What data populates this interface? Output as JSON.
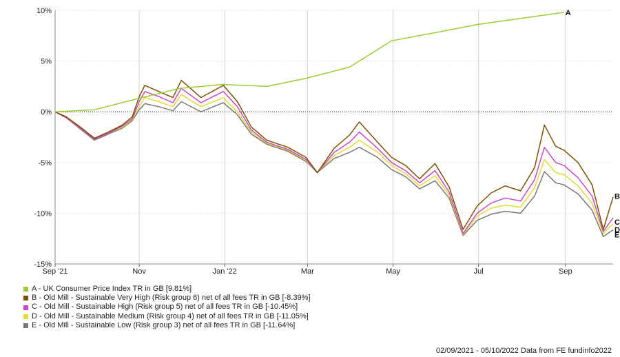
{
  "chart_data": {
    "type": "line",
    "title": "",
    "xlabel": "",
    "ylabel": "",
    "x_ticks": [
      {
        "label": "Sep '21",
        "date": "2021-09-02"
      },
      {
        "label": "Nov",
        "date": "2021-11-01"
      },
      {
        "label": "Jan '22",
        "date": "2022-01-01"
      },
      {
        "label": "Mar",
        "date": "2022-03-01"
      },
      {
        "label": "May",
        "date": "2022-05-01"
      },
      {
        "label": "Jul",
        "date": "2022-07-01"
      },
      {
        "label": "Sep",
        "date": "2022-09-01"
      }
    ],
    "x_range": [
      "2021-09-02",
      "2022-10-05"
    ],
    "ylim": [
      -15,
      10
    ],
    "y_ticks": [
      {
        "value": 10,
        "label": "10%"
      },
      {
        "value": 5,
        "label": "5%"
      },
      {
        "value": 0,
        "label": "0%"
      },
      {
        "value": -5,
        "label": "-5%"
      },
      {
        "value": -10,
        "label": "-10%"
      },
      {
        "value": -15,
        "label": "-15%"
      }
    ],
    "grid": true,
    "zero_line": "dotted",
    "legend_position": "bottom-left",
    "series": [
      {
        "id": "A",
        "name": "A - UK Consumer Price Index TR in GB [9.81%]",
        "color": "#99cc33",
        "points": [
          [
            "2021-09-02",
            0
          ],
          [
            "2021-09-30",
            0.2
          ],
          [
            "2021-10-31",
            1.3
          ],
          [
            "2021-11-30",
            2.3
          ],
          [
            "2021-12-31",
            2.7
          ],
          [
            "2022-01-31",
            2.5
          ],
          [
            "2022-02-28",
            3.3
          ],
          [
            "2022-03-31",
            4.4
          ],
          [
            "2022-04-30",
            7.0
          ],
          [
            "2022-05-31",
            7.8
          ],
          [
            "2022-06-30",
            8.6
          ],
          [
            "2022-07-31",
            9.2
          ],
          [
            "2022-08-31",
            9.8
          ]
        ]
      },
      {
        "id": "B",
        "name": "B - Old Mill - Sustainable Very High (Risk group 6) net of all fees TR in GB [-8.39%]",
        "color": "#7a5200",
        "points": [
          [
            "2021-09-02",
            0
          ],
          [
            "2021-09-10",
            -0.5
          ],
          [
            "2021-09-20",
            -1.5
          ],
          [
            "2021-09-30",
            -2.6
          ],
          [
            "2021-10-10",
            -2.0
          ],
          [
            "2021-10-20",
            -1.3
          ],
          [
            "2021-10-27",
            -0.5
          ],
          [
            "2021-11-01",
            1.5
          ],
          [
            "2021-11-05",
            2.6
          ],
          [
            "2021-11-15",
            2.0
          ],
          [
            "2021-11-25",
            1.4
          ],
          [
            "2021-12-01",
            3.1
          ],
          [
            "2021-12-15",
            1.4
          ],
          [
            "2021-12-31",
            2.6
          ],
          [
            "2022-01-10",
            1.0
          ],
          [
            "2022-01-20",
            -1.5
          ],
          [
            "2022-01-31",
            -2.8
          ],
          [
            "2022-02-15",
            -3.5
          ],
          [
            "2022-02-28",
            -4.5
          ],
          [
            "2022-03-08",
            -6.0
          ],
          [
            "2022-03-20",
            -3.6
          ],
          [
            "2022-03-31",
            -2.3
          ],
          [
            "2022-04-07",
            -1.0
          ],
          [
            "2022-04-20",
            -3.0
          ],
          [
            "2022-04-30",
            -4.5
          ],
          [
            "2022-05-10",
            -5.3
          ],
          [
            "2022-05-20",
            -6.6
          ],
          [
            "2022-05-31",
            -5.1
          ],
          [
            "2022-06-10",
            -7.4
          ],
          [
            "2022-06-20",
            -11.6
          ],
          [
            "2022-06-30",
            -9.3
          ],
          [
            "2022-07-10",
            -8.0
          ],
          [
            "2022-07-20",
            -7.3
          ],
          [
            "2022-07-31",
            -7.8
          ],
          [
            "2022-08-10",
            -5.5
          ],
          [
            "2022-08-17",
            -1.3
          ],
          [
            "2022-08-25",
            -3.4
          ],
          [
            "2022-08-31",
            -3.8
          ],
          [
            "2022-09-10",
            -5.0
          ],
          [
            "2022-09-20",
            -7.2
          ],
          [
            "2022-09-28",
            -11.6
          ],
          [
            "2022-10-05",
            -8.39
          ]
        ]
      },
      {
        "id": "C",
        "name": "C - Old Mill - Sustainable High (Risk group 5) net of all fees TR in GB [-10.45%]",
        "color": "#cc44cc",
        "points": [
          [
            "2021-09-02",
            0
          ],
          [
            "2021-09-10",
            -0.6
          ],
          [
            "2021-09-20",
            -1.6
          ],
          [
            "2021-09-30",
            -2.7
          ],
          [
            "2021-10-10",
            -2.1
          ],
          [
            "2021-10-20",
            -1.4
          ],
          [
            "2021-10-27",
            -0.7
          ],
          [
            "2021-11-01",
            1.0
          ],
          [
            "2021-11-05",
            2.0
          ],
          [
            "2021-11-15",
            1.5
          ],
          [
            "2021-11-25",
            0.9
          ],
          [
            "2021-12-01",
            2.3
          ],
          [
            "2021-12-15",
            0.9
          ],
          [
            "2021-12-31",
            2.0
          ],
          [
            "2022-01-10",
            0.5
          ],
          [
            "2022-01-20",
            -1.8
          ],
          [
            "2022-01-31",
            -3.0
          ],
          [
            "2022-02-15",
            -3.7
          ],
          [
            "2022-02-28",
            -4.7
          ],
          [
            "2022-03-08",
            -6.0
          ],
          [
            "2022-03-20",
            -4.0
          ],
          [
            "2022-03-31",
            -3.0
          ],
          [
            "2022-04-07",
            -2.0
          ],
          [
            "2022-04-20",
            -3.6
          ],
          [
            "2022-04-30",
            -5.0
          ],
          [
            "2022-05-10",
            -5.8
          ],
          [
            "2022-05-20",
            -7.0
          ],
          [
            "2022-05-31",
            -5.8
          ],
          [
            "2022-06-10",
            -7.9
          ],
          [
            "2022-06-20",
            -12.0
          ],
          [
            "2022-06-30",
            -10.0
          ],
          [
            "2022-07-10",
            -9.0
          ],
          [
            "2022-07-20",
            -8.5
          ],
          [
            "2022-07-31",
            -8.8
          ],
          [
            "2022-08-10",
            -6.7
          ],
          [
            "2022-08-17",
            -3.5
          ],
          [
            "2022-08-25",
            -5.0
          ],
          [
            "2022-08-31",
            -5.3
          ],
          [
            "2022-09-10",
            -6.5
          ],
          [
            "2022-09-20",
            -8.3
          ],
          [
            "2022-09-28",
            -11.8
          ],
          [
            "2022-10-05",
            -10.45
          ]
        ]
      },
      {
        "id": "D",
        "name": "D - Old Mill - Sustainable Medium (Risk group 4) net of all fees TR in GB [-11.05%]",
        "color": "#dddd33",
        "points": [
          [
            "2021-09-02",
            0
          ],
          [
            "2021-09-10",
            -0.6
          ],
          [
            "2021-09-20",
            -1.6
          ],
          [
            "2021-09-30",
            -2.7
          ],
          [
            "2021-10-10",
            -2.1
          ],
          [
            "2021-10-20",
            -1.5
          ],
          [
            "2021-10-27",
            -0.8
          ],
          [
            "2021-11-01",
            0.5
          ],
          [
            "2021-11-05",
            1.4
          ],
          [
            "2021-11-15",
            1.0
          ],
          [
            "2021-11-25",
            0.5
          ],
          [
            "2021-12-01",
            1.7
          ],
          [
            "2021-12-15",
            0.5
          ],
          [
            "2021-12-31",
            1.4
          ],
          [
            "2022-01-10",
            0.0
          ],
          [
            "2022-01-20",
            -2.0
          ],
          [
            "2022-01-31",
            -3.1
          ],
          [
            "2022-02-15",
            -3.8
          ],
          [
            "2022-02-28",
            -4.8
          ],
          [
            "2022-03-08",
            -6.0
          ],
          [
            "2022-03-20",
            -4.3
          ],
          [
            "2022-03-31",
            -3.5
          ],
          [
            "2022-04-07",
            -2.8
          ],
          [
            "2022-04-20",
            -4.0
          ],
          [
            "2022-04-30",
            -5.3
          ],
          [
            "2022-05-10",
            -6.1
          ],
          [
            "2022-05-20",
            -7.3
          ],
          [
            "2022-05-31",
            -6.3
          ],
          [
            "2022-06-10",
            -8.2
          ],
          [
            "2022-06-20",
            -12.1
          ],
          [
            "2022-06-30",
            -10.3
          ],
          [
            "2022-07-10",
            -9.5
          ],
          [
            "2022-07-20",
            -9.2
          ],
          [
            "2022-07-31",
            -9.4
          ],
          [
            "2022-08-10",
            -7.5
          ],
          [
            "2022-08-17",
            -4.7
          ],
          [
            "2022-08-25",
            -6.0
          ],
          [
            "2022-08-31",
            -6.2
          ],
          [
            "2022-09-10",
            -7.3
          ],
          [
            "2022-09-20",
            -9.0
          ],
          [
            "2022-09-28",
            -12.0
          ],
          [
            "2022-10-05",
            -11.05
          ]
        ]
      },
      {
        "id": "E",
        "name": "E - Old Mill - Sustainable Low (Risk group 3) net of all fees TR in GB [-11.64%]",
        "color": "#777777",
        "points": [
          [
            "2021-09-02",
            0
          ],
          [
            "2021-09-10",
            -0.6
          ],
          [
            "2021-09-20",
            -1.7
          ],
          [
            "2021-09-30",
            -2.8
          ],
          [
            "2021-10-10",
            -2.2
          ],
          [
            "2021-10-20",
            -1.6
          ],
          [
            "2021-10-27",
            -0.9
          ],
          [
            "2021-11-01",
            0.2
          ],
          [
            "2021-11-05",
            0.8
          ],
          [
            "2021-11-15",
            0.5
          ],
          [
            "2021-11-25",
            0.1
          ],
          [
            "2021-12-01",
            1.0
          ],
          [
            "2021-12-15",
            0.0
          ],
          [
            "2021-12-31",
            0.9
          ],
          [
            "2022-01-10",
            -0.3
          ],
          [
            "2022-01-20",
            -2.2
          ],
          [
            "2022-01-31",
            -3.2
          ],
          [
            "2022-02-15",
            -3.9
          ],
          [
            "2022-02-28",
            -4.9
          ],
          [
            "2022-03-08",
            -6.0
          ],
          [
            "2022-03-20",
            -4.6
          ],
          [
            "2022-03-31",
            -4.0
          ],
          [
            "2022-04-07",
            -3.5
          ],
          [
            "2022-04-20",
            -4.5
          ],
          [
            "2022-04-30",
            -5.7
          ],
          [
            "2022-05-10",
            -6.4
          ],
          [
            "2022-05-20",
            -7.6
          ],
          [
            "2022-05-31",
            -6.8
          ],
          [
            "2022-06-10",
            -8.5
          ],
          [
            "2022-06-20",
            -12.2
          ],
          [
            "2022-06-30",
            -10.7
          ],
          [
            "2022-07-10",
            -10.1
          ],
          [
            "2022-07-20",
            -9.8
          ],
          [
            "2022-07-31",
            -10.0
          ],
          [
            "2022-08-10",
            -8.3
          ],
          [
            "2022-08-17",
            -5.9
          ],
          [
            "2022-08-25",
            -7.0
          ],
          [
            "2022-08-31",
            -7.2
          ],
          [
            "2022-09-10",
            -8.1
          ],
          [
            "2022-09-20",
            -9.7
          ],
          [
            "2022-09-28",
            -12.3
          ],
          [
            "2022-10-05",
            -11.64
          ]
        ]
      }
    ]
  },
  "footer": "02/09/2021 - 05/10/2022 Data from FE fundinfo2022"
}
